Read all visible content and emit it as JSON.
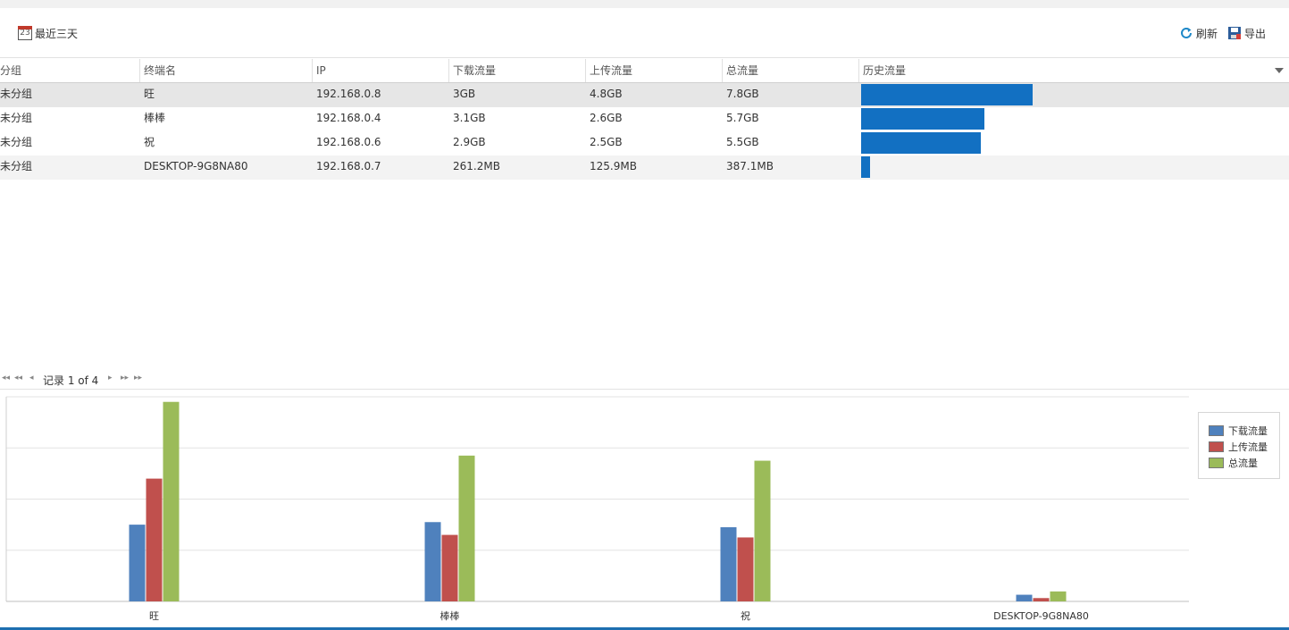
{
  "toolbar": {
    "range_label": "最近三天",
    "calendar_day": "23",
    "refresh_label": "刷新",
    "export_label": "导出"
  },
  "grid": {
    "columns": [
      "分组",
      "终端名",
      "IP",
      "下载流量",
      "上传流量",
      "总流量",
      "历史流量"
    ],
    "rows": [
      {
        "group": "未分组",
        "name": "旺",
        "ip": "192.168.0.8",
        "download": "3GB",
        "upload": "4.8GB",
        "total": "7.8GB",
        "history_fraction": 1.0
      },
      {
        "group": "未分组",
        "name": "棒棒",
        "ip": "192.168.0.4",
        "download": "3.1GB",
        "upload": "2.6GB",
        "total": "5.7GB",
        "history_fraction": 0.72
      },
      {
        "group": "未分组",
        "name": "祝",
        "ip": "192.168.0.6",
        "download": "2.9GB",
        "upload": "2.5GB",
        "total": "5.5GB",
        "history_fraction": 0.7
      },
      {
        "group": "未分组",
        "name": "DESKTOP-9G8NA80",
        "ip": "192.168.0.7",
        "download": "261.2MB",
        "upload": "125.9MB",
        "total": "387.1MB",
        "history_fraction": 0.05
      }
    ]
  },
  "pager": {
    "text": "记录 1 of 4"
  },
  "chart_data": {
    "type": "bar",
    "categories": [
      "旺",
      "棒棒",
      "祝",
      "DESKTOP-9G8NA80"
    ],
    "series": [
      {
        "name": "下载流量",
        "values": [
          3.0,
          3.1,
          2.9,
          0.26
        ],
        "color": "#4f81bd"
      },
      {
        "name": "上传流量",
        "values": [
          4.8,
          2.6,
          2.5,
          0.13
        ],
        "color": "#c0504d"
      },
      {
        "name": "总流量",
        "values": [
          7.8,
          5.7,
          5.5,
          0.39
        ],
        "color": "#9bbb59"
      }
    ],
    "ylim": [
      0,
      8
    ],
    "grid": true,
    "legend": "top-right"
  }
}
